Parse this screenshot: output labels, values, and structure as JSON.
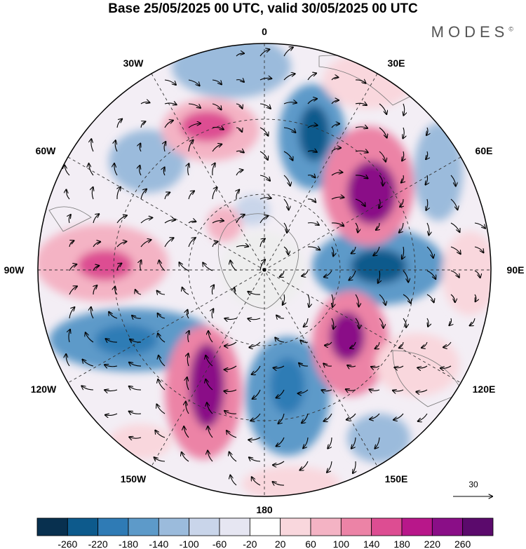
{
  "header": {
    "title": "Base 25/05/2025 00 UTC, valid 30/05/2025 00 UTC",
    "brand": "MODES",
    "brand_mark": "©"
  },
  "map": {
    "projection": "south-polar-stereographic",
    "longitude_labels": {
      "top": "0",
      "top_right": "30E",
      "right_upper": "60E",
      "right": "90E",
      "right_lower": "120E",
      "bottom_right": "150E",
      "bottom": "180",
      "bottom_left": "150W",
      "left_lower": "120W",
      "left": "90W",
      "left_upper": "60W",
      "top_left": "30W"
    },
    "wind_reference_label": "30"
  },
  "colorbar": {
    "colors": [
      "#08304f",
      "#0d5a8c",
      "#2f7bb5",
      "#5d9ac9",
      "#9bbbdc",
      "#c9d5ea",
      "#e6e6f2",
      "#ffffff",
      "#f9d7dd",
      "#f4b3c4",
      "#ec83a6",
      "#dd4d92",
      "#b8178a",
      "#8a0e87",
      "#5b0a6c"
    ],
    "tick_labels": [
      "-260",
      "-220",
      "-180",
      "-140",
      "-100",
      "-60",
      "-20",
      "20",
      "60",
      "100",
      "140",
      "180",
      "220",
      "260"
    ]
  }
}
